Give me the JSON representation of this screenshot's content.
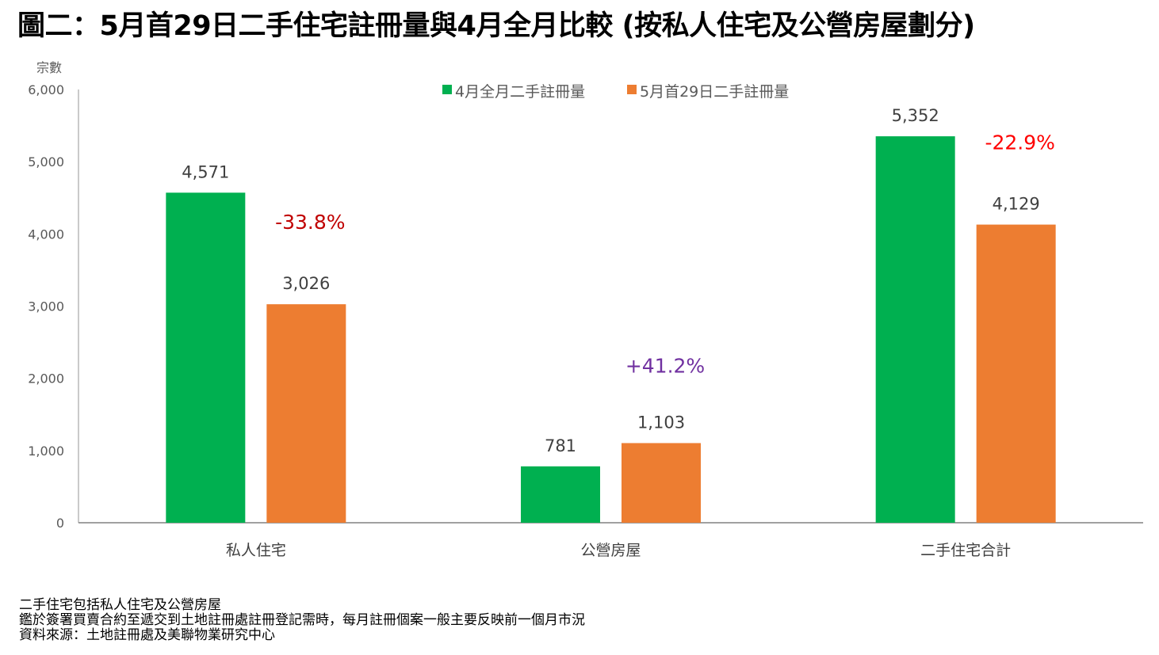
{
  "title": "圖二：5月首29日二手住宅註冊量與4月全月比較 (按私人住宅及公營房屋劃分)",
  "footnotes": [
    "二手住宅包括私人住宅及公營房屋",
    "鑑於簽署買賣合約至遞交到土地註冊處註冊登記需時，每月註冊個案一般主要反映前一個月市況",
    "資料來源：土地註冊處及美聯物業研究中心"
  ],
  "chart_data": {
    "type": "bar",
    "ylabel": "宗數",
    "ylim": [
      0,
      6000
    ],
    "yticks": [
      0,
      1000,
      2000,
      3000,
      4000,
      5000,
      6000
    ],
    "ytick_labels": [
      "0",
      "1,000",
      "2,000",
      "3,000",
      "4,000",
      "5,000",
      "6,000"
    ],
    "categories": [
      "私人住宅",
      "公營房屋",
      "二手住宅合計"
    ],
    "series": [
      {
        "name": "4月全月二手註冊量",
        "color": "#00B050",
        "values": [
          4571,
          781,
          5352
        ],
        "labels": [
          "4,571",
          "781",
          "5,352"
        ]
      },
      {
        "name": "5月首29日二手註冊量",
        "color": "#ED7D31",
        "values": [
          3026,
          1103,
          4129
        ],
        "labels": [
          "3,026",
          "1,103",
          "4,129"
        ]
      }
    ],
    "changes": [
      {
        "label": "-33.8%",
        "color": "#C00000"
      },
      {
        "label": "+41.2%",
        "color": "#7030A0"
      },
      {
        "label": "-22.9%",
        "color": "#FF0000"
      }
    ],
    "legend_position": "top-center",
    "grid": false
  }
}
